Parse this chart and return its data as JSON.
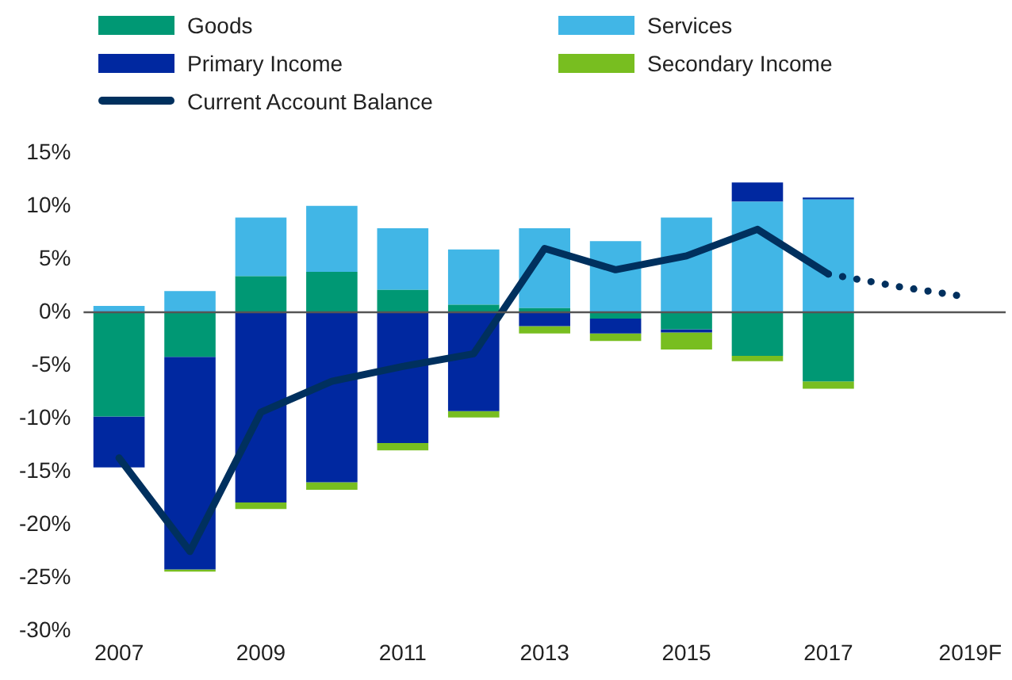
{
  "chart_data": {
    "type": "bar",
    "stacked": true,
    "legend": "top",
    "grid": false,
    "categories": [
      "2007",
      null,
      "2009",
      null,
      "2011",
      null,
      "2013",
      null,
      "2015",
      null,
      "2017",
      null,
      "2019F"
    ],
    "ylim": [
      -30,
      15
    ],
    "yticks": [
      {
        "value": -30,
        "label": "-30%"
      },
      {
        "value": -25,
        "label": "-25%"
      },
      {
        "value": -20,
        "label": "-20%"
      },
      {
        "value": -15,
        "label": "-15%"
      },
      {
        "value": -10,
        "label": "-10%"
      },
      {
        "value": -5,
        "label": "-5%"
      },
      {
        "value": 0,
        "label": "0%"
      },
      {
        "value": 5,
        "label": "5%"
      },
      {
        "value": 10,
        "label": "10%"
      },
      {
        "value": 15,
        "label": "15%"
      }
    ],
    "ref_lines": [
      {
        "axis": "y",
        "value": 0,
        "color": "#555555"
      }
    ],
    "series": [
      {
        "name": "Goods",
        "color": "#009874",
        "values": [
          -9.8,
          -4.2,
          3.4,
          3.8,
          2.1,
          0.7,
          0.4,
          -0.6,
          -1.6,
          -4.1,
          -6.5,
          null,
          null
        ]
      },
      {
        "name": "Services",
        "color": "#41b6e6",
        "values": [
          0.6,
          2.0,
          5.5,
          6.2,
          5.8,
          5.2,
          7.5,
          6.7,
          8.9,
          10.4,
          10.6,
          null,
          null
        ]
      },
      {
        "name": "Primary Income",
        "color": "#0028a0",
        "values": [
          -4.8,
          -20.0,
          -17.9,
          -16.0,
          -12.3,
          -9.3,
          -1.3,
          -1.4,
          -0.3,
          1.8,
          0.2,
          null,
          null
        ]
      },
      {
        "name": "Secondary Income",
        "color": "#78be20",
        "values": [
          0,
          -0.2,
          -0.6,
          -0.7,
          -0.7,
          -0.6,
          -0.7,
          -0.7,
          -1.6,
          -0.5,
          -0.7,
          null,
          null
        ]
      },
      {
        "name": "Current Account Balance",
        "type": "line",
        "color": "#00305e",
        "line_style": "solid",
        "values": [
          -13.7,
          -22.5,
          -9.4,
          -6.5,
          -5.1,
          -3.9,
          6.0,
          4.0,
          5.3,
          7.8,
          3.6,
          null,
          null
        ]
      },
      {
        "type": "line",
        "color": "#00305e",
        "line_style": "dotted",
        "values": [
          null,
          null,
          null,
          null,
          null,
          null,
          null,
          null,
          null,
          null,
          3.6,
          2.4,
          1.4
        ]
      }
    ]
  }
}
